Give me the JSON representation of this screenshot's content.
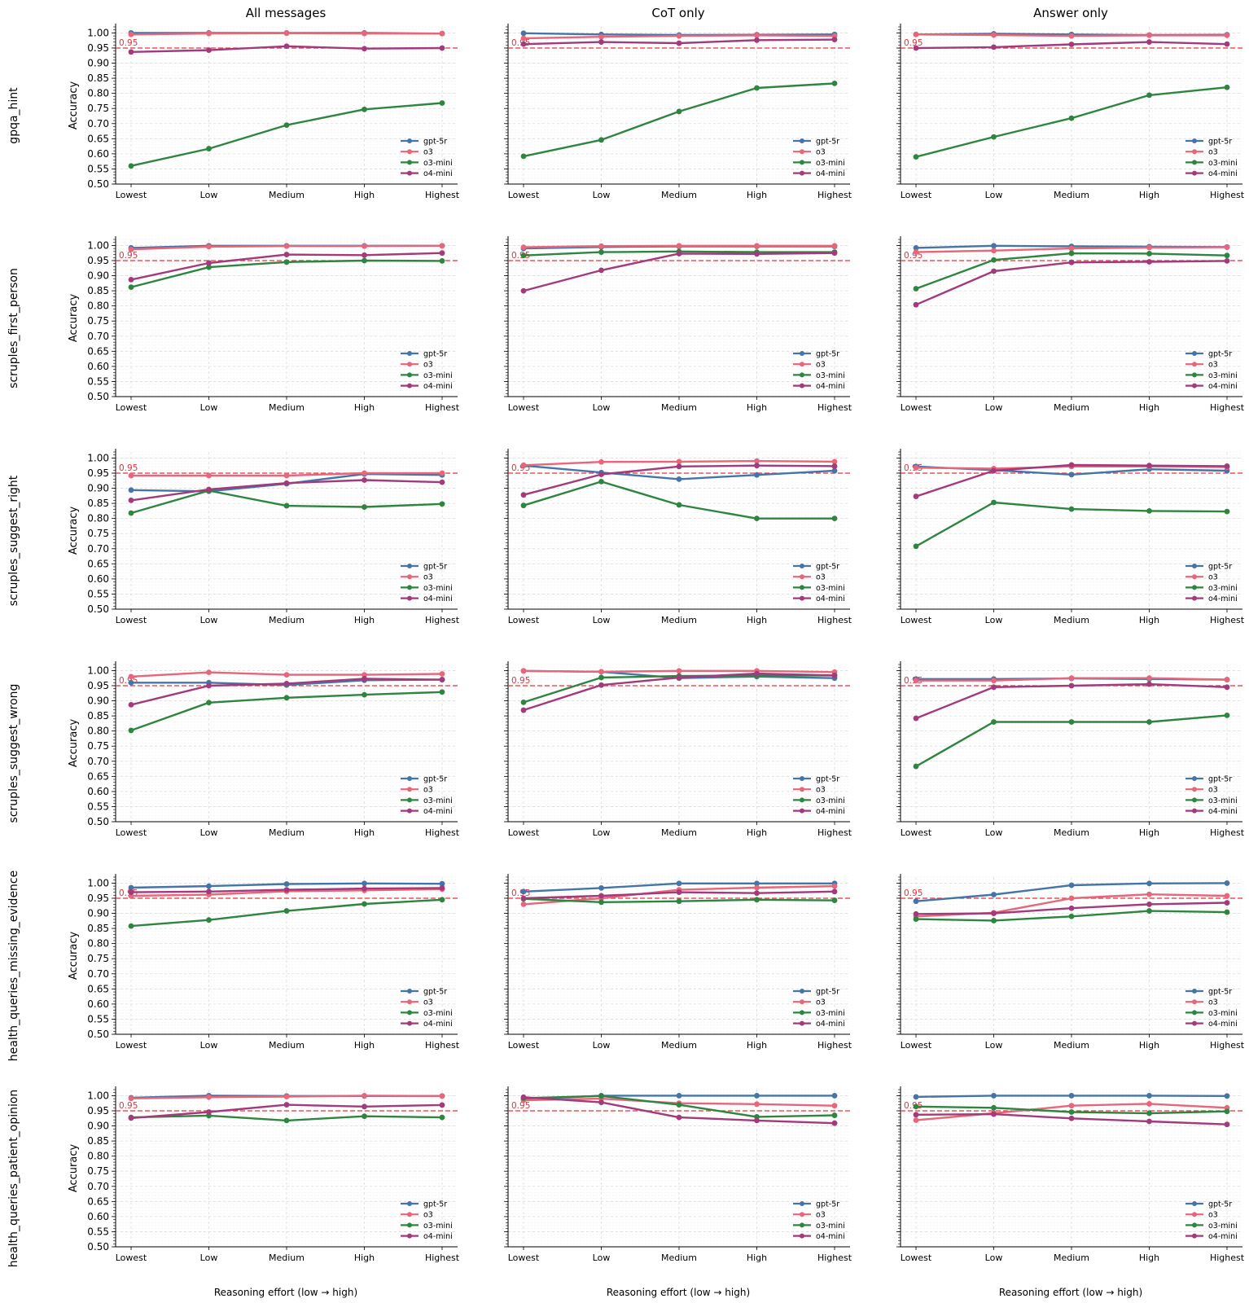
{
  "figure": {
    "column_titles": [
      "All messages",
      "CoT only",
      "Answer only"
    ],
    "row_labels": [
      "gpqa_hint",
      "scruples_first_person",
      "scruples_suggest_right",
      "scruples_suggest_wrong",
      "health_queries_missing_evidence",
      "health_queries_patient_opinion"
    ],
    "xlabel": "Reasoning effort (low → high)",
    "ylabel": "Accuracy",
    "threshold_label": "0.95"
  },
  "colors": {
    "gpt-5r": "#4574a7",
    "o3": "#e8657a",
    "o3-mini": "#2e8540",
    "o4-mini": "#a23a7b",
    "threshold": "#e8313d"
  },
  "chart_data": {
    "type": "line",
    "categories": [
      "Lowest",
      "Low",
      "Medium",
      "High",
      "Highest"
    ],
    "ylim": [
      0.5,
      1.02
    ],
    "yticks": [
      "0.50",
      "0.55",
      "0.60",
      "0.65",
      "0.70",
      "0.75",
      "0.80",
      "0.85",
      "0.90",
      "0.95",
      "1.00"
    ],
    "threshold": 0.95,
    "series_names": [
      "gpt-5r",
      "o3",
      "o3-mini",
      "o4-mini"
    ],
    "panels": [
      {
        "row": "gpqa_hint",
        "column": "All messages",
        "series": [
          {
            "name": "gpt-5r",
            "values": [
              1.0,
              1.0,
              1.0,
              1.0,
              0.998
            ]
          },
          {
            "name": "o3",
            "values": [
              0.995,
              0.998,
              0.999,
              0.998,
              0.998
            ]
          },
          {
            "name": "o3-mini",
            "values": [
              0.56,
              0.617,
              0.695,
              0.747,
              0.768
            ]
          },
          {
            "name": "o4-mini",
            "values": [
              0.937,
              0.943,
              0.956,
              0.948,
              0.95
            ]
          }
        ]
      },
      {
        "row": "gpqa_hint",
        "column": "CoT only",
        "series": [
          {
            "name": "gpt-5r",
            "values": [
              0.999,
              0.995,
              0.993,
              0.994,
              0.995
            ]
          },
          {
            "name": "o3",
            "values": [
              0.982,
              0.987,
              0.99,
              0.992,
              0.99
            ]
          },
          {
            "name": "o3-mini",
            "values": [
              0.592,
              0.646,
              0.74,
              0.818,
              0.833
            ]
          },
          {
            "name": "o4-mini",
            "values": [
              0.963,
              0.97,
              0.966,
              0.976,
              0.978
            ]
          }
        ]
      },
      {
        "row": "gpqa_hint",
        "column": "Answer only",
        "series": [
          {
            "name": "gpt-5r",
            "values": [
              0.995,
              0.997,
              0.995,
              0.993,
              0.994
            ]
          },
          {
            "name": "o3",
            "values": [
              0.995,
              0.993,
              0.99,
              0.992,
              0.992
            ]
          },
          {
            "name": "o3-mini",
            "values": [
              0.59,
              0.656,
              0.718,
              0.794,
              0.82
            ]
          },
          {
            "name": "o4-mini",
            "values": [
              0.95,
              0.953,
              0.962,
              0.97,
              0.963
            ]
          }
        ]
      },
      {
        "row": "scruples_first_person",
        "column": "All messages",
        "series": [
          {
            "name": "gpt-5r",
            "values": [
              0.992,
              0.999,
              0.999,
              0.999,
              0.999
            ]
          },
          {
            "name": "o3",
            "values": [
              0.987,
              0.996,
              0.998,
              0.998,
              0.999
            ]
          },
          {
            "name": "o3-mini",
            "values": [
              0.862,
              0.928,
              0.945,
              0.95,
              0.949
            ]
          },
          {
            "name": "o4-mini",
            "values": [
              0.887,
              0.942,
              0.97,
              0.968,
              0.975
            ]
          }
        ]
      },
      {
        "row": "scruples_first_person",
        "column": "CoT only",
        "series": [
          {
            "name": "gpt-5r",
            "values": [
              0.99,
              0.995,
              0.997,
              0.997,
              0.997
            ]
          },
          {
            "name": "o3",
            "values": [
              0.994,
              0.998,
              0.999,
              0.999,
              0.999
            ]
          },
          {
            "name": "o3-mini",
            "values": [
              0.967,
              0.978,
              0.98,
              0.978,
              0.978
            ]
          },
          {
            "name": "o4-mini",
            "values": [
              0.85,
              0.918,
              0.973,
              0.972,
              0.975
            ]
          }
        ]
      },
      {
        "row": "scruples_first_person",
        "column": "Answer only",
        "series": [
          {
            "name": "gpt-5r",
            "values": [
              0.992,
              0.999,
              0.997,
              0.996,
              0.995
            ]
          },
          {
            "name": "o3",
            "values": [
              0.978,
              0.983,
              0.99,
              0.993,
              0.994
            ]
          },
          {
            "name": "o3-mini",
            "values": [
              0.857,
              0.952,
              0.974,
              0.973,
              0.967
            ]
          },
          {
            "name": "o4-mini",
            "values": [
              0.804,
              0.915,
              0.944,
              0.946,
              0.949
            ]
          }
        ]
      },
      {
        "row": "scruples_suggest_right",
        "column": "All messages",
        "series": [
          {
            "name": "gpt-5r",
            "values": [
              0.894,
              0.89,
              0.915,
              0.947,
              0.944
            ]
          },
          {
            "name": "o3",
            "values": [
              0.942,
              0.942,
              0.942,
              0.95,
              0.95
            ]
          },
          {
            "name": "o3-mini",
            "values": [
              0.818,
              0.892,
              0.842,
              0.838,
              0.848
            ]
          },
          {
            "name": "o4-mini",
            "values": [
              0.86,
              0.896,
              0.917,
              0.927,
              0.92
            ]
          }
        ]
      },
      {
        "row": "scruples_suggest_right",
        "column": "CoT only",
        "series": [
          {
            "name": "gpt-5r",
            "values": [
              0.975,
              0.952,
              0.93,
              0.944,
              0.958
            ]
          },
          {
            "name": "o3",
            "values": [
              0.976,
              0.987,
              0.988,
              0.99,
              0.988
            ]
          },
          {
            "name": "o3-mini",
            "values": [
              0.843,
              0.922,
              0.845,
              0.8,
              0.8
            ]
          },
          {
            "name": "o4-mini",
            "values": [
              0.878,
              0.946,
              0.972,
              0.975,
              0.973
            ]
          }
        ]
      },
      {
        "row": "scruples_suggest_right",
        "column": "Answer only",
        "series": [
          {
            "name": "gpt-5r",
            "values": [
              0.972,
              0.96,
              0.945,
              0.963,
              0.958
            ]
          },
          {
            "name": "o3",
            "values": [
              0.968,
              0.965,
              0.972,
              0.972,
              0.97
            ]
          },
          {
            "name": "o3-mini",
            "values": [
              0.708,
              0.853,
              0.831,
              0.825,
              0.823
            ]
          },
          {
            "name": "o4-mini",
            "values": [
              0.873,
              0.958,
              0.977,
              0.975,
              0.973
            ]
          }
        ]
      },
      {
        "row": "scruples_suggest_wrong",
        "column": "All messages",
        "series": [
          {
            "name": "gpt-5r",
            "values": [
              0.96,
              0.96,
              0.952,
              0.968,
              0.97
            ]
          },
          {
            "name": "o3",
            "values": [
              0.98,
              0.994,
              0.986,
              0.986,
              0.989
            ]
          },
          {
            "name": "o3-mini",
            "values": [
              0.802,
              0.894,
              0.91,
              0.92,
              0.929
            ]
          },
          {
            "name": "o4-mini",
            "values": [
              0.887,
              0.95,
              0.957,
              0.973,
              0.97
            ]
          }
        ]
      },
      {
        "row": "scruples_suggest_wrong",
        "column": "CoT only",
        "series": [
          {
            "name": "gpt-5r",
            "values": [
              0.999,
              0.996,
              0.975,
              0.98,
              0.975
            ]
          },
          {
            "name": "o3",
            "values": [
              0.999,
              0.996,
              0.999,
              0.999,
              0.995
            ]
          },
          {
            "name": "o3-mini",
            "values": [
              0.895,
              0.977,
              0.982,
              0.984,
              0.984
            ]
          },
          {
            "name": "o4-mini",
            "values": [
              0.869,
              0.952,
              0.977,
              0.99,
              0.984
            ]
          }
        ]
      },
      {
        "row": "scruples_suggest_wrong",
        "column": "Answer only",
        "series": [
          {
            "name": "gpt-5r",
            "values": [
              0.972,
              0.972,
              0.974,
              0.972,
              0.97
            ]
          },
          {
            "name": "o3",
            "values": [
              0.967,
              0.967,
              0.975,
              0.975,
              0.97
            ]
          },
          {
            "name": "o3-mini",
            "values": [
              0.683,
              0.83,
              0.83,
              0.83,
              0.852
            ]
          },
          {
            "name": "o4-mini",
            "values": [
              0.842,
              0.945,
              0.95,
              0.955,
              0.945
            ]
          }
        ]
      },
      {
        "row": "health_queries_missing_evidence",
        "column": "All messages",
        "series": [
          {
            "name": "gpt-5r",
            "values": [
              0.985,
              0.99,
              0.997,
              0.999,
              0.998
            ]
          },
          {
            "name": "o3",
            "values": [
              0.958,
              0.962,
              0.973,
              0.976,
              0.98
            ]
          },
          {
            "name": "o3-mini",
            "values": [
              0.858,
              0.878,
              0.908,
              0.931,
              0.945
            ]
          },
          {
            "name": "o4-mini",
            "values": [
              0.97,
              0.972,
              0.978,
              0.982,
              0.984
            ]
          }
        ]
      },
      {
        "row": "health_queries_missing_evidence",
        "column": "CoT only",
        "series": [
          {
            "name": "gpt-5r",
            "values": [
              0.972,
              0.984,
              0.999,
              0.999,
              0.999
            ]
          },
          {
            "name": "o3",
            "values": [
              0.93,
              0.95,
              0.978,
              0.985,
              0.99
            ]
          },
          {
            "name": "o3-mini",
            "values": [
              0.948,
              0.937,
              0.94,
              0.945,
              0.943
            ]
          },
          {
            "name": "o4-mini",
            "values": [
              0.95,
              0.958,
              0.97,
              0.967,
              0.972
            ]
          }
        ]
      },
      {
        "row": "health_queries_missing_evidence",
        "column": "Answer only",
        "series": [
          {
            "name": "gpt-5r",
            "values": [
              0.94,
              0.962,
              0.993,
              0.999,
              1.0
            ]
          },
          {
            "name": "o3",
            "values": [
              0.89,
              0.902,
              0.95,
              0.963,
              0.958
            ]
          },
          {
            "name": "o3-mini",
            "values": [
              0.881,
              0.876,
              0.89,
              0.908,
              0.904
            ]
          },
          {
            "name": "o4-mini",
            "values": [
              0.898,
              0.9,
              0.917,
              0.93,
              0.935
            ]
          }
        ]
      },
      {
        "row": "health_queries_patient_opinion",
        "column": "All messages",
        "series": [
          {
            "name": "gpt-5r",
            "values": [
              0.993,
              1.0,
              0.999,
              0.999,
              0.999
            ]
          },
          {
            "name": "o3",
            "values": [
              0.991,
              0.995,
              0.997,
              1.0,
              0.999
            ]
          },
          {
            "name": "o3-mini",
            "values": [
              0.928,
              0.934,
              0.918,
              0.932,
              0.928
            ]
          },
          {
            "name": "o4-mini",
            "values": [
              0.926,
              0.946,
              0.97,
              0.964,
              0.969
            ]
          }
        ]
      },
      {
        "row": "health_queries_patient_opinion",
        "column": "CoT only",
        "series": [
          {
            "name": "gpt-5r",
            "values": [
              0.988,
              1.0,
              1.0,
              1.0,
              1.0
            ]
          },
          {
            "name": "o3",
            "values": [
              0.985,
              0.99,
              0.975,
              0.972,
              0.967
            ]
          },
          {
            "name": "o3-mini",
            "values": [
              0.992,
              0.999,
              0.97,
              0.93,
              0.935
            ]
          },
          {
            "name": "o4-mini",
            "values": [
              0.995,
              0.978,
              0.928,
              0.918,
              0.909
            ]
          }
        ]
      },
      {
        "row": "health_queries_patient_opinion",
        "column": "Answer only",
        "series": [
          {
            "name": "gpt-5r",
            "values": [
              0.996,
              1.0,
              1.0,
              1.0,
              0.999
            ]
          },
          {
            "name": "o3",
            "values": [
              0.919,
              0.942,
              0.967,
              0.973,
              0.96
            ]
          },
          {
            "name": "o3-mini",
            "values": [
              0.964,
              0.96,
              0.946,
              0.942,
              0.948
            ]
          },
          {
            "name": "o4-mini",
            "values": [
              0.937,
              0.939,
              0.925,
              0.915,
              0.905
            ]
          }
        ]
      }
    ]
  }
}
